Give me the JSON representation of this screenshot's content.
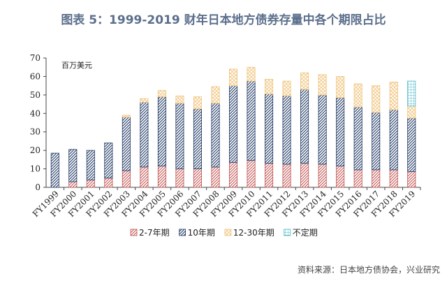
{
  "title": "图表 5：1999-2019 财年日本地方债券存量中各个期限占比",
  "source": "资料来源：日本地方债协会，兴业研究",
  "colors": {
    "series_2_7": "#c0504d",
    "series_10": "#1f3864",
    "series_12_30": "#f0c37a",
    "series_undetermined": "#4bb7c8"
  },
  "chart_data": {
    "type": "bar",
    "stacked": true,
    "unit_label": "百万美元",
    "ylim": [
      0,
      70
    ],
    "yticks": [
      0,
      10,
      20,
      30,
      40,
      50,
      60,
      70
    ],
    "legend_position": "bottom",
    "categories": [
      "FY1999",
      "FY2000",
      "FY2001",
      "FY2002",
      "FY2003",
      "FY2004",
      "FY2005",
      "FY2006",
      "FY2007",
      "FY2008",
      "FY2009",
      "FY2010",
      "FY2011",
      "FY2012",
      "FY2013",
      "FY2014",
      "FY2015",
      "FY2016",
      "FY2017",
      "FY2018",
      "FY2019"
    ],
    "series": [
      {
        "name": "2-7年期",
        "values": [
          0,
          3,
          4,
          5,
          9,
          11,
          11.5,
          10,
          10,
          11,
          13.5,
          14.5,
          13,
          12.5,
          13,
          12.5,
          11.5,
          9.5,
          9.5,
          9.5,
          8.5
        ]
      },
      {
        "name": "10年期",
        "values": [
          18.5,
          17.5,
          16,
          19,
          29,
          35,
          37.5,
          35.5,
          32.5,
          34.5,
          41.5,
          43,
          37.5,
          37,
          40,
          37.5,
          37,
          34,
          31,
          32.5,
          29
        ]
      },
      {
        "name": "12-30年期",
        "values": [
          0,
          0,
          0,
          0,
          1,
          2,
          3.5,
          4,
          6.5,
          9,
          9,
          7.5,
          8,
          8,
          9,
          11,
          11.5,
          12.5,
          14.5,
          15,
          6.5
        ]
      },
      {
        "name": "不定期",
        "values": [
          0,
          0,
          0,
          0,
          0,
          0,
          0,
          0,
          0,
          0,
          0,
          0,
          0,
          0,
          0,
          0,
          0,
          0,
          0,
          0,
          13.5
        ]
      }
    ]
  }
}
